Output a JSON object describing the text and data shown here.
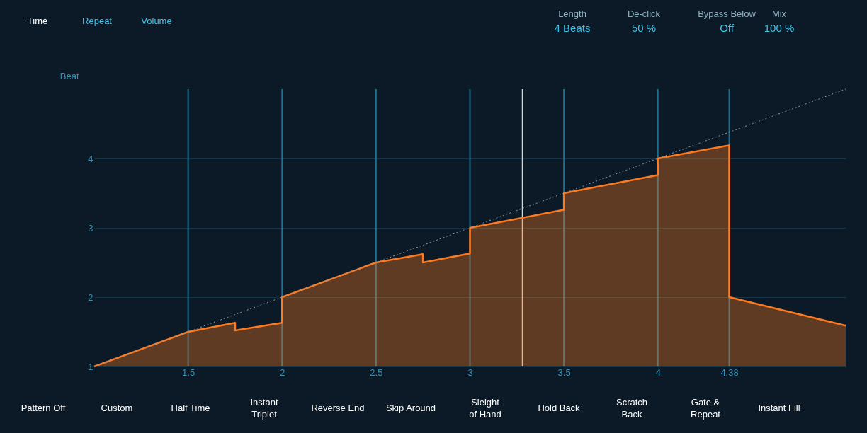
{
  "chart_data": {
    "type": "area",
    "ylabel": "Beat",
    "xlim": [
      1,
      5
    ],
    "ylim": [
      1,
      5
    ],
    "xticks": [
      1.5,
      2,
      2.5,
      3,
      3.5,
      4,
      {
        "value": 4.38,
        "label": "4.38"
      }
    ],
    "yticks": [
      1,
      2,
      3,
      4
    ],
    "grid": "y",
    "series": [
      {
        "color": "#ff7a1f",
        "x": [
          1,
          1.5,
          1.75,
          1.75,
          2,
          2,
          2.5,
          2.75,
          2.75,
          3,
          3,
          3.5,
          3.5,
          4,
          4,
          4.38,
          4.38,
          5
        ],
        "values": [
          1,
          1.5,
          1.63,
          1.52,
          1.63,
          2,
          2.5,
          2.62,
          2.5,
          2.63,
          3,
          3.26,
          3.5,
          3.76,
          4,
          4.19,
          2,
          1.59
        ]
      },
      {
        "type": "line",
        "color": "#8a9aa6",
        "line_style": "dotted",
        "x": [
          1,
          5
        ],
        "values": [
          1,
          5
        ]
      }
    ],
    "ref_lines": [
      {
        "axis": "x",
        "value": 1.5,
        "color": "#1d6f8f"
      },
      {
        "axis": "x",
        "value": 2,
        "color": "#1d6f8f"
      },
      {
        "axis": "x",
        "value": 2.5,
        "color": "#1d6f8f"
      },
      {
        "axis": "x",
        "value": 3,
        "color": "#1d6f8f"
      },
      {
        "axis": "x",
        "value": 3.5,
        "color": "#1d6f8f"
      },
      {
        "axis": "x",
        "value": 4,
        "color": "#1d6f8f"
      },
      {
        "axis": "x",
        "value": 4.38,
        "color": "#1d6f8f"
      },
      {
        "axis": "x",
        "value": 3.28,
        "color": "#d0d8de"
      }
    ],
    "annotations": [
      "Time",
      "Repeat",
      "Volume",
      "Length",
      "4 Beats",
      "De-click",
      "50 %",
      "Bypass Below",
      "Off",
      "Mix",
      "100 %",
      "Pattern Off",
      "Custom",
      "Half Time",
      "Instant\nTriplet",
      "Reverse End",
      "Skip Around",
      "Sleight\nof Hand",
      "Hold Back",
      "Scratch\nBack",
      "Gate &\nRepeat",
      "Instant Fill"
    ]
  }
}
